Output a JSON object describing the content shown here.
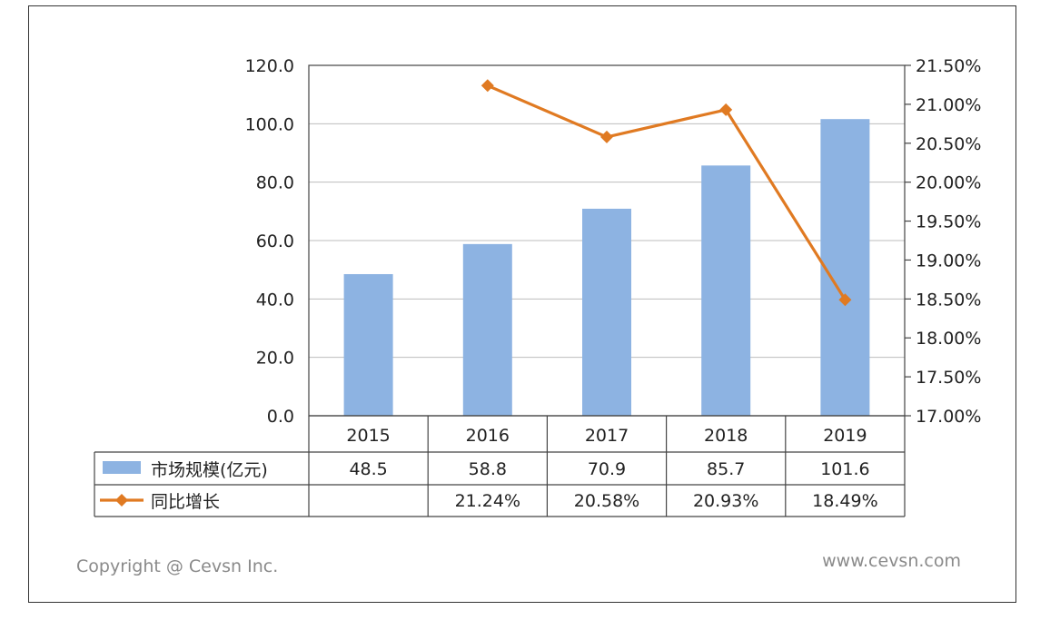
{
  "chart_data": {
    "type": "bar+line",
    "categories": [
      "2015",
      "2016",
      "2017",
      "2018",
      "2019"
    ],
    "series": [
      {
        "name": "市场规模(亿元)",
        "type": "bar",
        "axis": "left",
        "values": [
          48.5,
          58.8,
          70.9,
          85.7,
          101.6
        ],
        "labels": [
          "48.5",
          "58.8",
          "70.9",
          "85.7",
          "101.6"
        ]
      },
      {
        "name": "同比增长",
        "type": "line",
        "axis": "right",
        "values": [
          null,
          21.24,
          20.58,
          20.93,
          18.49
        ],
        "labels": [
          "",
          "21.24%",
          "20.58%",
          "20.93%",
          "18.49%"
        ]
      }
    ],
    "y_left": {
      "ylim": [
        0,
        120
      ],
      "ticks": [
        "0.0",
        "20.0",
        "40.0",
        "60.0",
        "80.0",
        "100.0",
        "120.0"
      ]
    },
    "y_right": {
      "ylim": [
        17.0,
        21.5
      ],
      "ticks": [
        "17.00%",
        "17.50%",
        "18.00%",
        "18.50%",
        "19.00%",
        "19.50%",
        "20.00%",
        "20.50%",
        "21.00%",
        "21.50%"
      ]
    },
    "grid": true,
    "legend": "data-table",
    "colors": {
      "bar": "#8db3e2",
      "line": "#e07a22"
    }
  },
  "footer": {
    "copyright": "Copyright @ Cevsn Inc.",
    "website": "www.cevsn.com"
  }
}
